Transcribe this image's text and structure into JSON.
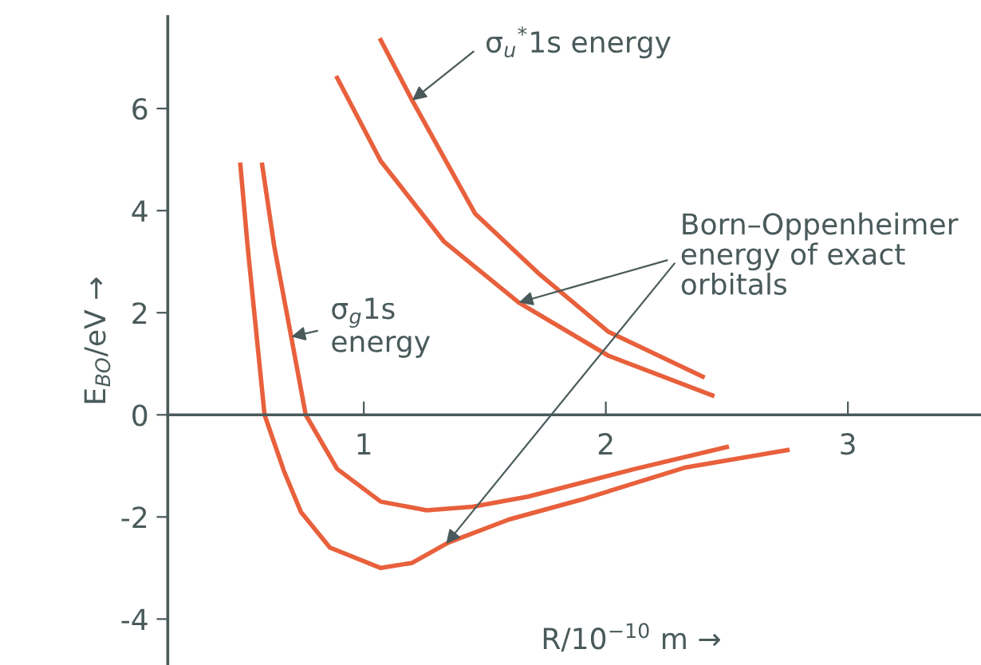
{
  "chart_data": {
    "type": "line",
    "xlabel": "R/10$^{−10}$ m →",
    "ylabel": "E$_{BO}$/eV →",
    "xlim": [
      0.19,
      3.55
    ],
    "ylim": [
      -4.9,
      7.8
    ],
    "xticks": [
      1,
      2,
      3
    ],
    "yticks": [
      -4,
      -2,
      0,
      2,
      4,
      6
    ],
    "grid": false,
    "legend": false,
    "marker": "none",
    "line_style": "solid",
    "series": [
      {
        "color": "#e8603c",
        "x": [
          0.49,
          0.52,
          0.59,
          0.67,
          0.74,
          0.86,
          1.07,
          1.2,
          1.35,
          1.6,
          1.9,
          2.33,
          2.75
        ],
        "values": [
          4.9,
          3.3,
          0,
          -1.1,
          -1.9,
          -2.6,
          -3.0,
          -2.9,
          -2.5,
          -2.05,
          -1.66,
          -1.03,
          -0.69
        ]
      },
      {
        "color": "#e8603c",
        "x": [
          0.58,
          0.63,
          0.7,
          0.76,
          0.89,
          1.07,
          1.26,
          1.45,
          1.68,
          2.12,
          2.5
        ],
        "values": [
          4.9,
          3.3,
          1.53,
          0,
          -1.06,
          -1.7,
          -1.87,
          -1.8,
          -1.6,
          -1.06,
          -0.63
        ]
      },
      {
        "color": "#e8603c",
        "x": [
          1.07,
          1.2,
          1.46,
          1.72,
          2.01,
          2.4
        ],
        "values": [
          7.34,
          6.16,
          3.94,
          2.78,
          1.63,
          0.75
        ]
      },
      {
        "color": "#e8603c",
        "x": [
          0.89,
          1.07,
          1.33,
          1.64,
          2.01,
          2.44
        ],
        "values": [
          6.6,
          4.97,
          3.4,
          2.2,
          1.16,
          0.38
        ]
      }
    ],
    "annotations": [
      {
        "text": "σ$_{u}$$^{*}$1s energy",
        "x": 1.2,
        "y": 6.16
      },
      {
        "text": "σ$_{g}$1s\nenergy",
        "x": 0.7,
        "y": 1.53
      },
      {
        "text": "Born–Oppenheimer\nenergy of exact\norbitals",
        "x": 1.34,
        "y": -2.53
      }
    ]
  }
}
